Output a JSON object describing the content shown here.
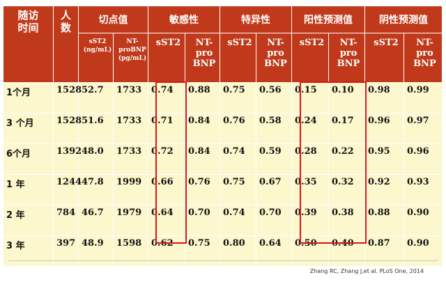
{
  "header": {
    "col_time": "随访\n时间",
    "col_count": "人\n数",
    "col_cutoff": "切点值",
    "col_sens": "敏感性",
    "col_spec": "特异性",
    "col_ppv": "阳性预测值",
    "col_npv": "阴性预测值",
    "sub_cutoff_sst2": "sST2\n(ng/mL)",
    "sub_cutoff_ntprobnp": "NT-\nproBNP\n(pg/mL)",
    "sub_sst2": "sST2",
    "sub_ntprobnp": "NT-\npro\nBNP"
  },
  "rows": [
    {
      "time": "1个月",
      "n": "1528",
      "cut_sst2": "52.7",
      "cut_bnp": "1733",
      "sens_sst2": "0.74",
      "sens_bnp": "0.88",
      "spec_sst2": "0.75",
      "spec_bnp": "0.56",
      "ppv_sst2": "0.15",
      "ppv_bnp": "0.10",
      "npv_sst2": "0.98",
      "npv_bnp": "0.99"
    },
    {
      "time": "3 个月",
      "n": "1528",
      "cut_sst2": "51.6",
      "cut_bnp": "1733",
      "sens_sst2": "0.71",
      "sens_bnp": "0.84",
      "spec_sst2": "0.76",
      "spec_bnp": "0.58",
      "ppv_sst2": "0.24",
      "ppv_bnp": "0.17",
      "npv_sst2": "0.96",
      "npv_bnp": "0.97"
    },
    {
      "time": "6个月",
      "n": "1392",
      "cut_sst2": "48.0",
      "cut_bnp": "1733",
      "sens_sst2": "0.72",
      "sens_bnp": "0.84",
      "spec_sst2": "0.74",
      "spec_bnp": "0.59",
      "ppv_sst2": "0.28",
      "ppv_bnp": "0.22",
      "npv_sst2": "0.95",
      "npv_bnp": "0.96"
    },
    {
      "time": "1 年",
      "n": "1244",
      "cut_sst2": "47.8",
      "cut_bnp": "1999",
      "sens_sst2": "0.66",
      "sens_bnp": "0.76",
      "spec_sst2": "0.75",
      "spec_bnp": "0.67",
      "ppv_sst2": "0.35",
      "ppv_bnp": "0.32",
      "npv_sst2": "0.92",
      "npv_bnp": "0.93"
    },
    {
      "time": "2 年",
      "n": "784",
      "cut_sst2": "46.7",
      "cut_bnp": "1979",
      "sens_sst2": "0.64",
      "sens_bnp": "0.70",
      "spec_sst2": "0.74",
      "spec_bnp": "0.70",
      "ppv_sst2": "0.39",
      "ppv_bnp": "0.38",
      "npv_sst2": "0.88",
      "npv_bnp": "0.90"
    },
    {
      "time": "3 年",
      "n": "397",
      "cut_sst2": "48.9",
      "cut_bnp": "1598",
      "sens_sst2": "0.62",
      "sens_bnp": "0.75",
      "spec_sst2": "0.80",
      "spec_bnp": "0.64",
      "ppv_sst2": "0.50",
      "ppv_bnp": "0.40",
      "npv_sst2": "0.87",
      "npv_bnp": "0.90"
    }
  ],
  "citation": "Zhang RC, Zhang J,et al. PLoS One, 2014",
  "colors": {
    "header_bg": "#c0391a",
    "cell_bg": "#fcf7cc",
    "highlight_box": "#d8151b"
  }
}
